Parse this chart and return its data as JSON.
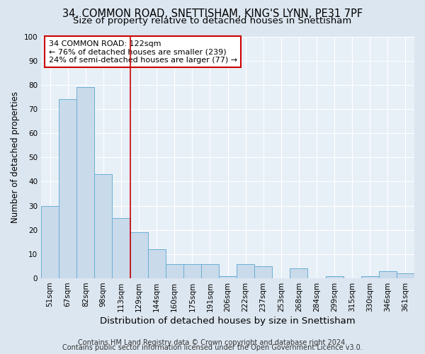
{
  "title": "34, COMMON ROAD, SNETTISHAM, KING'S LYNN, PE31 7PF",
  "subtitle": "Size of property relative to detached houses in Snettisham",
  "xlabel": "Distribution of detached houses by size in Snettisham",
  "ylabel": "Number of detached properties",
  "bar_labels": [
    "51sqm",
    "67sqm",
    "82sqm",
    "98sqm",
    "113sqm",
    "129sqm",
    "144sqm",
    "160sqm",
    "175sqm",
    "191sqm",
    "206sqm",
    "222sqm",
    "237sqm",
    "253sqm",
    "268sqm",
    "284sqm",
    "299sqm",
    "315sqm",
    "330sqm",
    "346sqm",
    "361sqm"
  ],
  "bar_values": [
    30,
    74,
    79,
    43,
    25,
    19,
    12,
    6,
    6,
    6,
    1,
    6,
    5,
    0,
    4,
    0,
    1,
    0,
    1,
    3,
    2
  ],
  "bar_color": "#c9daea",
  "bar_edgecolor": "#6aaed6",
  "ylim": [
    0,
    100
  ],
  "yticks": [
    0,
    10,
    20,
    30,
    40,
    50,
    60,
    70,
    80,
    90,
    100
  ],
  "vline_x": 4.5,
  "vline_color": "#cc0000",
  "annotation_line1": "34 COMMON ROAD: 122sqm",
  "annotation_line2": "← 76% of detached houses are smaller (239)",
  "annotation_line3": "24% of semi-detached houses are larger (77) →",
  "box_edgecolor": "#cc0000",
  "footer_line1": "Contains HM Land Registry data © Crown copyright and database right 2024.",
  "footer_line2": "Contains public sector information licensed under the Open Government Licence v3.0.",
  "bg_color": "#dce6f0",
  "plot_bg_color": "#e8f0f7",
  "grid_color": "#ffffff",
  "title_fontsize": 10.5,
  "subtitle_fontsize": 9.5,
  "xlabel_fontsize": 9.5,
  "ylabel_fontsize": 8.5,
  "tick_fontsize": 7.5,
  "annot_fontsize": 8.0,
  "footer_fontsize": 7.0
}
